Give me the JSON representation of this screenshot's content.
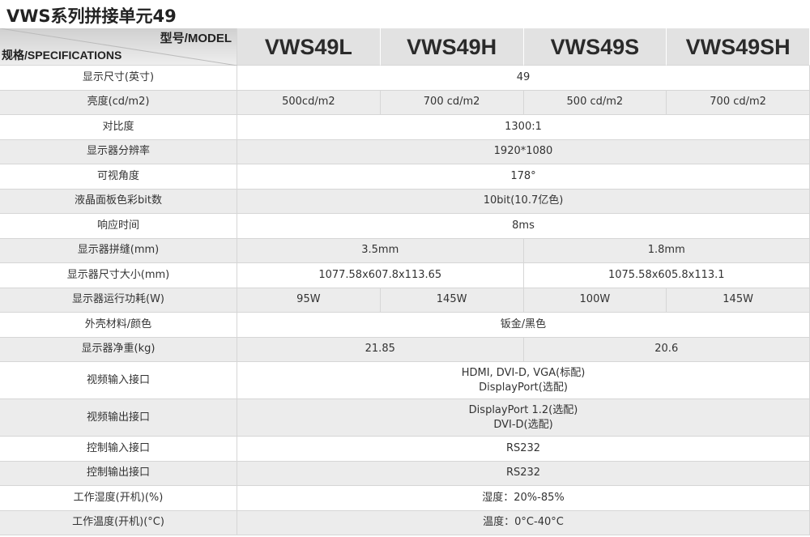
{
  "header": {
    "title": "VWS系列拼接单元49",
    "model_label": "型号/MODEL",
    "spec_label": "规格/SPECIFICATIONS",
    "models": [
      "VWS49L",
      "VWS49H",
      "VWS49S",
      "VWS49SH"
    ]
  },
  "table": {
    "rows": [
      {
        "label": "显示尺寸(英寸)",
        "cells": [
          "49"
        ]
      },
      {
        "label": "亮度(cd/m2)",
        "cells": [
          "500cd/m2",
          "700 cd/m2",
          "500 cd/m2",
          "700 cd/m2"
        ]
      },
      {
        "label": "对比度",
        "cells": [
          "1300:1"
        ]
      },
      {
        "label": "显示器分辨率",
        "cells": [
          "1920*1080"
        ]
      },
      {
        "label": "可视角度",
        "cells": [
          "178°"
        ]
      },
      {
        "label": "液晶面板色彩bit数",
        "cells": [
          "10bit(10.7亿色)"
        ]
      },
      {
        "label": "响应时间",
        "cells": [
          "8ms"
        ]
      },
      {
        "label": "显示器拼缝(mm)",
        "cells": [
          "3.5mm",
          "1.8mm"
        ]
      },
      {
        "label": "显示器尺寸大小(mm)",
        "cells": [
          "1077.58x607.8x113.65",
          "1075.58x605.8x113.1"
        ]
      },
      {
        "label": "显示器运行功耗(W)",
        "cells": [
          "95W",
          "145W",
          "100W",
          "145W"
        ]
      },
      {
        "label": "外壳材料/颜色",
        "cells": [
          "钣金/黑色"
        ]
      },
      {
        "label": "显示器净重(kg)",
        "cells": [
          "21.85",
          "20.6"
        ]
      },
      {
        "label": "视频输入接口",
        "cells": [
          [
            "HDMI, DVI-D, VGA(标配)",
            "DisplayPort(选配)"
          ]
        ]
      },
      {
        "label": "视频输出接口",
        "cells": [
          [
            "DisplayPort 1.2(选配)",
            "DVI-D(选配)"
          ]
        ]
      },
      {
        "label": "控制输入接口",
        "cells": [
          "RS232"
        ]
      },
      {
        "label": "控制输出接口",
        "cells": [
          "RS232"
        ]
      },
      {
        "label": "工作湿度(开机)(%)",
        "cells": [
          "湿度：20%-85%"
        ]
      },
      {
        "label": "工作温度(开机)(°C)",
        "cells": [
          "温度：0°C-40°C"
        ]
      }
    ]
  }
}
